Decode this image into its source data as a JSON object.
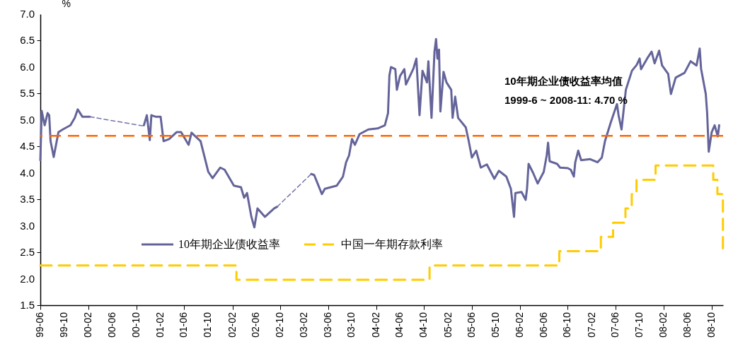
{
  "chart_data": {
    "type": "line",
    "ylabel": "%",
    "xlim": [
      "1999-06-01",
      "2008-11-28"
    ],
    "ylim": [
      1.5,
      7.0
    ],
    "yticks": [
      1.5,
      {
        "value": 2,
        "label": "2.0"
      },
      2.5,
      {
        "value": 3,
        "label": "3.0"
      },
      3.5,
      {
        "value": 4,
        "label": "4.0"
      },
      4.5,
      {
        "value": 5,
        "label": "5.0"
      },
      5.5,
      {
        "value": 6,
        "label": "6.0"
      },
      6.5,
      {
        "value": 7,
        "label": "7.0"
      }
    ],
    "xticks": [
      {
        "value": "1999-06",
        "label": "99-06"
      },
      {
        "value": "1999-10",
        "label": "99-10"
      },
      {
        "value": "2000-02",
        "label": "00-02"
      },
      {
        "value": "2000-06",
        "label": "00-06"
      },
      {
        "value": "2000-10",
        "label": "00-10"
      },
      {
        "value": "2001-02",
        "label": "01-02"
      },
      {
        "value": "2001-06",
        "label": "01-06"
      },
      {
        "value": "2001-10",
        "label": "01-10"
      },
      {
        "value": "2002-02",
        "label": "02-02"
      },
      {
        "value": "2002-06",
        "label": "02-06"
      },
      {
        "value": "2002-10",
        "label": "02-10"
      },
      {
        "value": "2003-02",
        "label": "03-02"
      },
      {
        "value": "2003-06",
        "label": "03-06"
      },
      {
        "value": "2003-10",
        "label": "03-10"
      },
      {
        "value": "2004-02",
        "label": "04-02"
      },
      {
        "value": "2004-06",
        "label": "04-06"
      },
      {
        "value": "2004-10",
        "label": "04-10"
      },
      {
        "value": "2005-02",
        "label": "05-02"
      },
      {
        "value": "2005-06",
        "label": "05-06"
      },
      {
        "value": "2005-10",
        "label": "05-10"
      },
      {
        "value": "2006-02",
        "label": "06-02"
      },
      {
        "value": "2006-06",
        "label": "06-06"
      },
      {
        "value": "2006-10",
        "label": "06-10"
      },
      {
        "value": "2007-02",
        "label": "07-02"
      },
      {
        "value": "2007-06",
        "label": "07-06"
      },
      {
        "value": "2007-10",
        "label": "07-10"
      },
      {
        "value": "2008-02",
        "label": "08-02"
      },
      {
        "value": "2008-06",
        "label": "08-06"
      },
      {
        "value": "2008-10",
        "label": "08-10"
      }
    ],
    "grid": false,
    "legend": "bottom",
    "marker": "none",
    "ref_lines": [
      {
        "axis": "y",
        "value": 4.7,
        "color": "#ff6600",
        "line_style": "dashed"
      }
    ],
    "annotations": [
      "10年期企业债收益率均值",
      "1999-6 ~ 2008-11: 4.70 %"
    ],
    "series": [
      {
        "name": "10年期企业债收益率",
        "color": "#64649a",
        "line_style": "solid",
        "x": [
          "1999-06-01",
          "1999-06-08",
          "1999-06-23",
          "1999-07-08",
          "1999-07-16",
          "1999-07-23",
          "1999-08-08",
          "1999-09-01",
          "1999-09-23",
          "1999-11-01",
          "1999-11-23",
          "1999-12-08",
          "2000-01-01",
          "2000-02-08",
          "2000-06-01",
          "2000-11-08",
          "2000-11-23",
          "2000-12-08",
          "2000-12-16",
          "2001-01-08",
          "2001-02-01",
          "2001-02-16",
          "2001-03-16",
          "2001-04-23",
          "2001-05-16",
          "2001-06-23",
          "2001-07-08",
          "2001-08-23",
          "2001-10-01",
          "2001-10-23",
          "2001-12-01",
          "2001-12-23",
          "2002-02-08",
          "2002-03-16",
          "2002-04-01",
          "2002-04-16",
          "2002-05-08",
          "2002-05-23",
          "2002-06-08",
          "2002-07-16",
          "2002-09-01",
          "2002-09-16",
          "2002-12-01",
          "2003-03-08",
          "2003-03-23",
          "2003-05-01",
          "2003-05-16",
          "2003-07-16",
          "2003-08-16",
          "2003-09-01",
          "2003-09-16",
          "2003-10-01",
          "2003-10-16",
          "2003-11-08",
          "2003-12-23",
          "2004-02-08",
          "2004-03-16",
          "2004-04-01",
          "2004-04-08",
          "2004-04-16",
          "2004-05-08",
          "2004-05-16",
          "2004-06-01",
          "2004-06-23",
          "2004-07-01",
          "2004-08-08",
          "2004-08-23",
          "2004-09-08",
          "2004-09-23",
          "2004-10-16",
          "2004-10-23",
          "2004-11-08",
          "2004-11-23",
          "2004-12-01",
          "2004-12-08",
          "2004-12-16",
          "2004-12-23",
          "2005-01-08",
          "2005-01-23",
          "2005-02-16",
          "2005-02-23",
          "2005-03-08",
          "2005-03-23",
          "2005-05-01",
          "2005-05-16",
          "2005-06-01",
          "2005-06-23",
          "2005-07-16",
          "2005-08-16",
          "2005-09-23",
          "2005-10-16",
          "2005-11-23",
          "2005-12-16",
          "2006-01-01",
          "2006-01-08",
          "2006-02-08",
          "2006-03-01",
          "2006-03-08",
          "2006-03-16",
          "2006-04-08",
          "2006-05-01",
          "2006-06-01",
          "2006-06-16",
          "2006-06-23",
          "2006-07-01",
          "2006-08-08",
          "2006-08-23",
          "2006-10-01",
          "2006-10-16",
          "2006-11-01",
          "2006-11-08",
          "2006-11-23",
          "2006-12-08",
          "2007-01-23",
          "2007-03-01",
          "2007-03-23",
          "2007-04-08",
          "2007-05-08",
          "2007-06-08",
          "2007-06-16",
          "2007-07-01",
          "2007-07-23",
          "2007-08-23",
          "2007-09-16",
          "2007-10-01",
          "2007-10-08",
          "2007-11-08",
          "2007-12-01",
          "2007-12-16",
          "2008-01-08",
          "2008-01-23",
          "2008-02-23",
          "2008-03-08",
          "2008-04-01",
          "2008-05-16",
          "2008-06-16",
          "2008-07-16",
          "2008-08-01",
          "2008-08-08",
          "2008-09-01",
          "2008-09-08",
          "2008-09-16",
          "2008-10-01",
          "2008-10-16",
          "2008-11-01",
          "2008-11-08"
        ],
        "values": [
          4.24,
          5.17,
          4.9,
          5.13,
          5.09,
          4.6,
          4.3,
          4.77,
          4.82,
          4.9,
          5.04,
          5.2,
          5.06,
          5.06,
          null,
          4.9,
          5.09,
          4.62,
          5.09,
          5.06,
          5.06,
          4.6,
          4.64,
          4.77,
          4.77,
          4.53,
          4.76,
          4.6,
          4.02,
          3.9,
          4.1,
          4.06,
          3.76,
          3.73,
          3.53,
          3.62,
          3.17,
          2.97,
          3.33,
          3.17,
          3.33,
          3.36,
          null,
          3.98,
          3.96,
          3.6,
          3.7,
          3.76,
          3.93,
          4.2,
          4.33,
          4.64,
          4.53,
          4.73,
          4.82,
          4.84,
          4.9,
          5.13,
          5.84,
          6.0,
          5.96,
          5.57,
          5.83,
          5.96,
          5.67,
          5.97,
          6.16,
          5.09,
          5.93,
          5.71,
          6.11,
          5.04,
          6.29,
          6.53,
          6.16,
          6.33,
          5.16,
          5.91,
          5.71,
          5.57,
          5.04,
          5.44,
          5.04,
          4.86,
          4.6,
          4.29,
          4.42,
          4.1,
          4.16,
          3.89,
          4.04,
          3.93,
          3.7,
          3.17,
          3.62,
          3.64,
          3.49,
          3.7,
          4.17,
          4.0,
          3.8,
          4.02,
          4.33,
          4.57,
          4.22,
          4.17,
          4.1,
          4.09,
          4.06,
          3.93,
          4.2,
          4.42,
          4.24,
          4.26,
          4.2,
          4.29,
          4.6,
          4.96,
          5.3,
          5.09,
          4.82,
          5.57,
          5.93,
          6.04,
          6.16,
          5.96,
          6.16,
          6.29,
          6.07,
          6.31,
          6.03,
          5.87,
          5.49,
          5.8,
          5.89,
          6.11,
          6.03,
          6.35,
          5.97,
          5.49,
          5.13,
          4.4,
          4.77,
          4.9,
          4.69,
          4.9
        ]
      },
      {
        "color": "#7474aa",
        "line_style": "dashed",
        "x": [
          "2000-02-08",
          "2000-11-01",
          "2001-06-01",
          "2002-09-16",
          "2003-03-08"
        ],
        "values": [
          5.06,
          4.89,
          null,
          3.36,
          3.98
        ]
      },
      {
        "name": "中国一年期存款利率",
        "type": "step",
        "color": "#ffcc00",
        "line_style": "dashed",
        "x": [
          "1999-06-01",
          "2002-02-21",
          "2004-10-29",
          "2006-08-19",
          "2007-03-18",
          "2007-05-19",
          "2007-07-21",
          "2007-08-22",
          "2007-09-15",
          "2007-12-21",
          "2008-10-09",
          "2008-10-30",
          "2008-11-27"
        ],
        "values": [
          2.25,
          1.98,
          2.25,
          2.52,
          2.79,
          3.06,
          3.33,
          3.6,
          3.87,
          4.14,
          3.87,
          3.6,
          2.52
        ]
      }
    ]
  }
}
